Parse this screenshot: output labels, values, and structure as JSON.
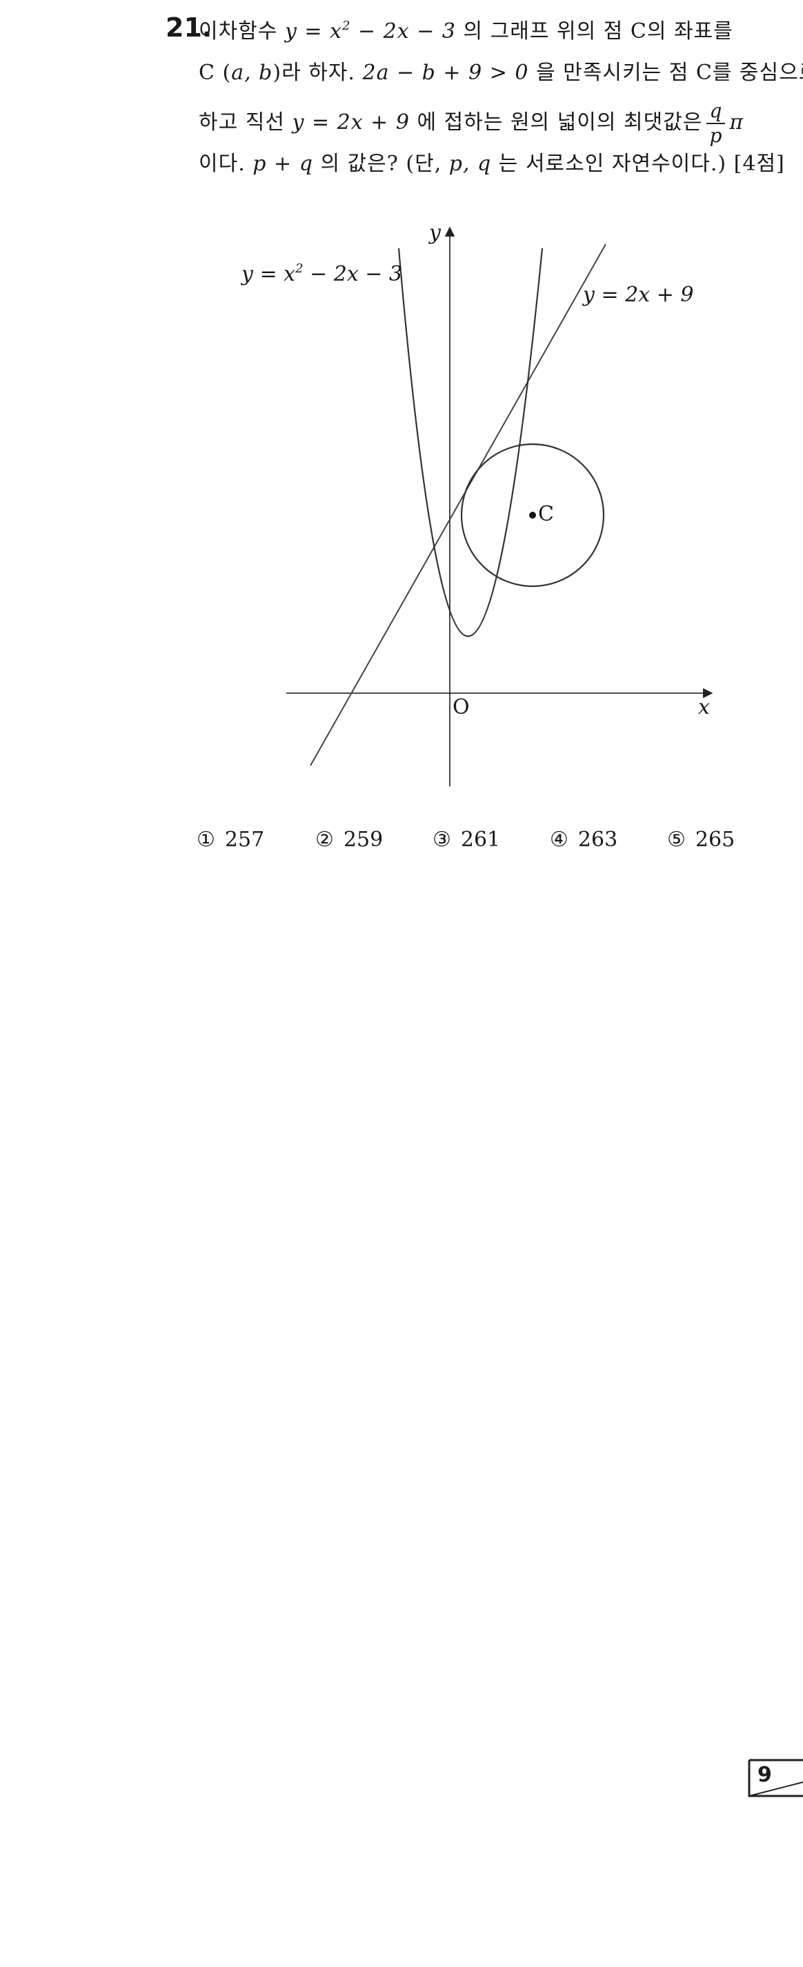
{
  "problem": {
    "number": "21.",
    "line1_a": "이차함수 ",
    "line1_func": "y = x",
    "line1_exp": "2",
    "line1_func_rest": " − 2x − 3",
    "line1_b": " 의 그래프 위의 점 C의 좌표를",
    "line2_a": "C (",
    "line2_vars": "a, b",
    "line2_b": ")라 하자. ",
    "line2_ineq": "2a − b + 9 > 0",
    "line2_c": " 을 만족시키는 점 C를 중심으로",
    "line3_a": "하고 직선 ",
    "line3_line": "y = 2x + 9",
    "line3_b": " 에 접하는 원의 넓이의 최댓값은",
    "frac_num": "q",
    "frac_den": "p",
    "pi": "π",
    "line4_a": "이다. ",
    "line4_sum": "p + q",
    "line4_b": " 의 값은? (단, ",
    "line4_vars": "p, q",
    "line4_c": " 는 서로소인 자연수이다.) [4점]"
  },
  "figure": {
    "parabola_label_a": "y = x",
    "parabola_label_exp": "2",
    "parabola_label_b": " − 2x − 3",
    "line_label": "y = 2x + 9",
    "y_axis_label": "y",
    "x_axis_label": "x",
    "origin_label": "O",
    "center_label": "C"
  },
  "choices": [
    {
      "mark": "①",
      "value": "257"
    },
    {
      "mark": "②",
      "value": "259"
    },
    {
      "mark": "③",
      "value": "261"
    },
    {
      "mark": "④",
      "value": "263"
    },
    {
      "mark": "⑤",
      "value": "265"
    }
  ],
  "page": {
    "number": "9"
  }
}
